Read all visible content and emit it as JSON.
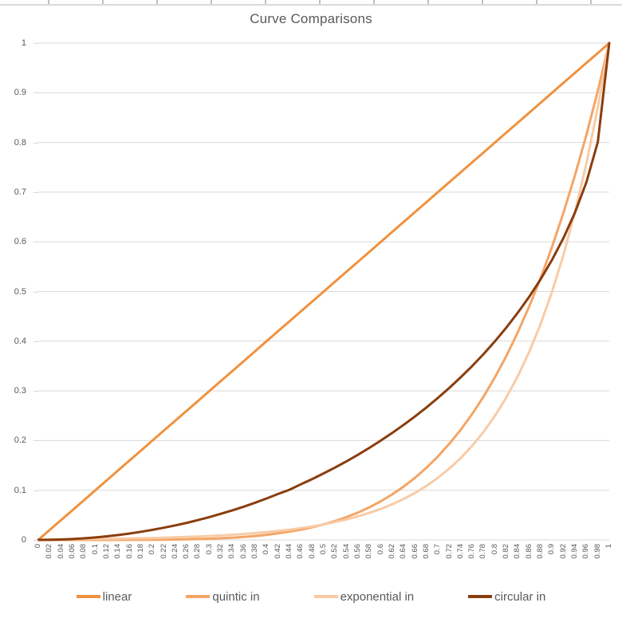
{
  "title": "Curve Comparisons",
  "colors": {
    "background": "#ffffff",
    "gridline": "#d9d9d9",
    "text": "#595959"
  },
  "chart_data": {
    "type": "line",
    "title": "Curve Comparisons",
    "xlabel": "",
    "ylabel": "",
    "xlim": [
      0,
      1
    ],
    "ylim": [
      0,
      1
    ],
    "grid": "horizontal-only",
    "legend_position": "bottom",
    "x_tick_labels": [
      "0",
      "0.02",
      "0.04",
      "0.06",
      "0.08",
      "0.1",
      "0.12",
      "0.14",
      "0.16",
      "0.18",
      "0.2",
      "0.22",
      "0.24",
      "0.26",
      "0.28",
      "0.3",
      "0.32",
      "0.34",
      "0.36",
      "0.38",
      "0.4",
      "0.42",
      "0.44",
      "0.46",
      "0.48",
      "0.5",
      "0.52",
      "0.54",
      "0.56",
      "0.58",
      "0.6",
      "0.62",
      "0.64",
      "0.66",
      "0.68",
      "0.7",
      "0.72",
      "0.74",
      "0.76",
      "0.78",
      "0.8",
      "0.82",
      "0.84",
      "0.86",
      "0.88",
      "0.9",
      "0.92",
      "0.94",
      "0.96",
      "0.98",
      "1"
    ],
    "y_tick_labels": [
      "0",
      "0.1",
      "0.2",
      "0.3",
      "0.4",
      "0.5",
      "0.6",
      "0.7",
      "0.8",
      "0.9",
      "1"
    ],
    "x": [
      0,
      0.02,
      0.04,
      0.06,
      0.08,
      0.1,
      0.12,
      0.14,
      0.16,
      0.18,
      0.2,
      0.22,
      0.24,
      0.26,
      0.28,
      0.3,
      0.32,
      0.34,
      0.36,
      0.38,
      0.4,
      0.42,
      0.44,
      0.46,
      0.48,
      0.5,
      0.52,
      0.54,
      0.56,
      0.58,
      0.6,
      0.62,
      0.64,
      0.66,
      0.68,
      0.7,
      0.72,
      0.74,
      0.76,
      0.78,
      0.8,
      0.82,
      0.84,
      0.86,
      0.88,
      0.9,
      0.92,
      0.94,
      0.96,
      0.98,
      1
    ],
    "series": [
      {
        "name": "linear",
        "color": "#f0913e",
        "values": [
          0,
          0.02,
          0.04,
          0.06,
          0.08,
          0.1,
          0.12,
          0.14,
          0.16,
          0.18,
          0.2,
          0.22,
          0.24,
          0.26,
          0.28,
          0.3,
          0.32,
          0.34,
          0.36,
          0.38,
          0.4,
          0.42,
          0.44,
          0.46,
          0.48,
          0.5,
          0.52,
          0.54,
          0.56,
          0.58,
          0.6,
          0.62,
          0.64,
          0.66,
          0.68,
          0.7,
          0.72,
          0.74,
          0.76,
          0.78,
          0.8,
          0.82,
          0.84,
          0.86,
          0.88,
          0.9,
          0.92,
          0.94,
          0.96,
          0.98,
          1
        ]
      },
      {
        "name": "quintic in",
        "color": "#f4a566",
        "values": [
          0,
          0,
          0,
          0,
          0,
          0,
          0,
          0.0001,
          0.0001,
          0.0002,
          0.0003,
          0.0005,
          0.0008,
          0.0012,
          0.0017,
          0.0024,
          0.0034,
          0.0045,
          0.006,
          0.0079,
          0.0102,
          0.0131,
          0.0165,
          0.0206,
          0.0255,
          0.0313,
          0.038,
          0.0459,
          0.0551,
          0.0656,
          0.0778,
          0.0916,
          0.1074,
          0.1252,
          0.1454,
          0.1681,
          0.1935,
          0.2219,
          0.2536,
          0.2887,
          0.3277,
          0.3707,
          0.4182,
          0.4704,
          0.5277,
          0.5905,
          0.6591,
          0.7339,
          0.8154,
          0.9039,
          1
        ]
      },
      {
        "name": "exponential in",
        "color": "#f8cba6",
        "values": [
          0,
          0.0011,
          0.0013,
          0.0015,
          0.0017,
          0.002,
          0.0022,
          0.0026,
          0.003,
          0.0034,
          0.0039,
          0.0045,
          0.0052,
          0.0059,
          0.0068,
          0.0078,
          0.009,
          0.0103,
          0.0118,
          0.0136,
          0.0156,
          0.018,
          0.0206,
          0.0237,
          0.0272,
          0.0313,
          0.0359,
          0.0412,
          0.0474,
          0.0544,
          0.0625,
          0.0718,
          0.0825,
          0.0947,
          0.1088,
          0.125,
          0.1436,
          0.1649,
          0.1895,
          0.2176,
          0.25,
          0.2872,
          0.3299,
          0.3789,
          0.4353,
          0.5,
          0.5743,
          0.6598,
          0.7579,
          0.8706,
          1
        ]
      },
      {
        "name": "circular in",
        "color": "#8a3d0e",
        "values": [
          0,
          0.0002,
          0.0008,
          0.0018,
          0.0032,
          0.005,
          0.0072,
          0.0098,
          0.0129,
          0.0163,
          0.0202,
          0.0245,
          0.0292,
          0.0344,
          0.04,
          0.0461,
          0.0526,
          0.0596,
          0.067,
          0.075,
          0.0835,
          0.0925,
          0.101,
          0.1121,
          0.1227,
          0.134,
          0.1458,
          0.1583,
          0.1715,
          0.1854,
          0.2,
          0.2154,
          0.2316,
          0.2487,
          0.2668,
          0.2859,
          0.306,
          0.3274,
          0.3501,
          0.3742,
          0.4,
          0.4276,
          0.4574,
          0.4897,
          0.525,
          0.5641,
          0.6081,
          0.6588,
          0.72,
          0.801,
          1
        ]
      }
    ]
  }
}
